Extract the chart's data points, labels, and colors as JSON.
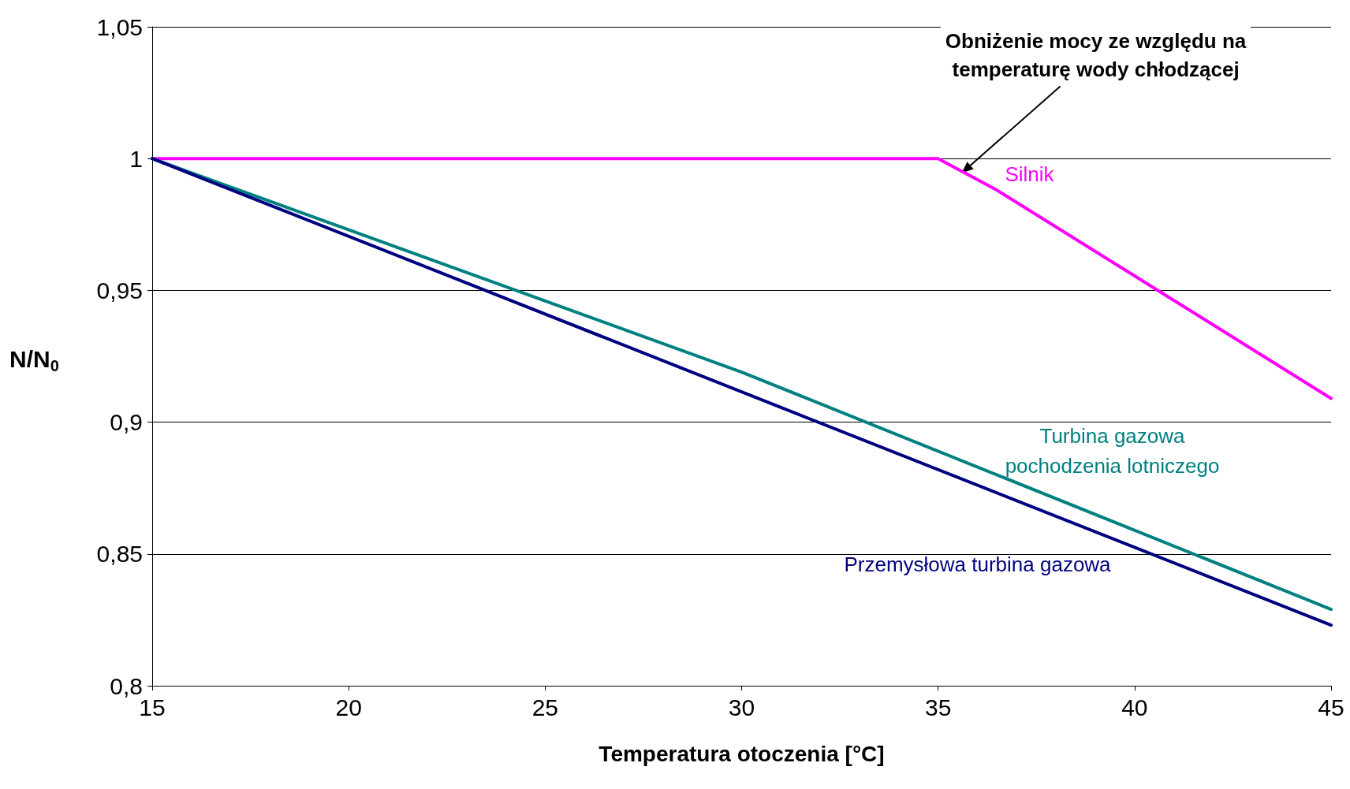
{
  "chart_data": {
    "type": "line",
    "xlabel": "Temperatura otoczenia [°C]",
    "ylabel": "N/N$_{0}$",
    "xlim": [
      15,
      45
    ],
    "xticks": [
      15,
      20,
      25,
      30,
      35,
      40,
      45
    ],
    "ylim": [
      0.8,
      1.05
    ],
    "yticks": [
      {
        "value": 0.8,
        "label": "0,8"
      },
      {
        "value": 0.85,
        "label": "0,85"
      },
      {
        "value": 0.9,
        "label": "0,9"
      },
      {
        "value": 0.95,
        "label": "0,95"
      },
      {
        "value": 1,
        "label": "1"
      },
      {
        "value": 1.05,
        "label": "1,05"
      }
    ],
    "grid": "y",
    "legend": false,
    "marker": "none",
    "line_style": "solid",
    "series": [
      {
        "name": "Silnik",
        "color": "#ff00ff",
        "x": [
          15,
          35,
          36.5,
          45
        ],
        "values": [
          1,
          1,
          0.988,
          0.909
        ]
      },
      {
        "name": "Turbina gazowa pochodzenia lotniczego",
        "color": "#008080",
        "x": [
          15,
          30,
          45
        ],
        "values": [
          1,
          0.919,
          0.829
        ]
      },
      {
        "name": "Przemysłowa turbina gazowa",
        "color": "#000080",
        "x": [
          15,
          45
        ],
        "values": [
          1,
          0.823
        ]
      }
    ],
    "annotations": [
      {
        "text": "Obniżenie mocy ze względu na temperaturę wody chłodzącej",
        "x": 35.6,
        "y": 0.9945
      }
    ]
  }
}
